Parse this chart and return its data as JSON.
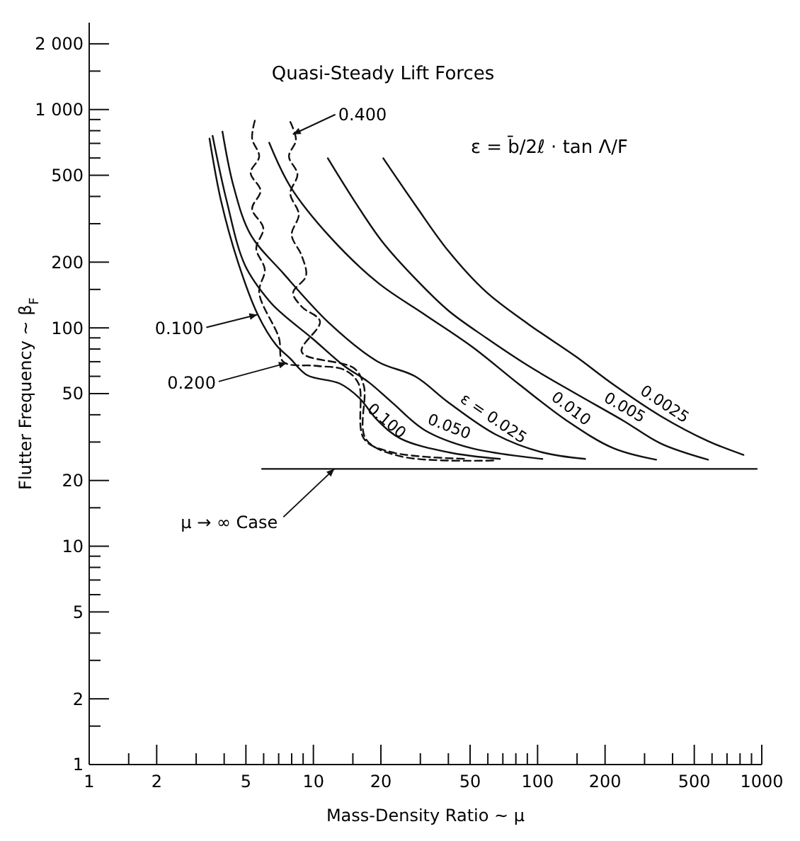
{
  "chart_data": {
    "type": "line",
    "title": "Quasi-Steady Lift Forces",
    "xlabel": "Mass-Density Ratio  ~  μ",
    "ylabel": "Flutter Frequency  ~  β$_{F}$",
    "log": "xy",
    "xlim": [
      1,
      1000
    ],
    "ylim": [
      1,
      2500
    ],
    "xticks": [
      1,
      {
        "value": 1.5,
        "label": null
      },
      2,
      {
        "value": 3,
        "label": null
      },
      {
        "value": 4,
        "label": null
      },
      5,
      {
        "value": 6,
        "label": null
      },
      {
        "value": 7,
        "label": null
      },
      {
        "value": 8,
        "label": null
      },
      {
        "value": 9,
        "label": null
      },
      10,
      {
        "value": 15,
        "label": null
      },
      20,
      {
        "value": 30,
        "label": null
      },
      {
        "value": 40,
        "label": null
      },
      50,
      {
        "value": 60,
        "label": null
      },
      {
        "value": 70,
        "label": null
      },
      {
        "value": 80,
        "label": null
      },
      {
        "value": 90,
        "label": null
      },
      100,
      {
        "value": 150,
        "label": null
      },
      200,
      {
        "value": 300,
        "label": null
      },
      {
        "value": 400,
        "label": null
      },
      500,
      {
        "value": 600,
        "label": null
      },
      {
        "value": 700,
        "label": null
      },
      {
        "value": 800,
        "label": null
      },
      {
        "value": 900,
        "label": null
      },
      1000
    ],
    "yticks": [
      1,
      {
        "value": 1.5,
        "label": null
      },
      2,
      {
        "value": 3,
        "label": null
      },
      {
        "value": 4,
        "label": null
      },
      5,
      {
        "value": 6,
        "label": null
      },
      {
        "value": 7,
        "label": null
      },
      {
        "value": 8,
        "label": null
      },
      {
        "value": 9,
        "label": null
      },
      10,
      {
        "value": 15,
        "label": null
      },
      20,
      {
        "value": 30,
        "label": null
      },
      {
        "value": 40,
        "label": null
      },
      50,
      {
        "value": 60,
        "label": null
      },
      {
        "value": 70,
        "label": null
      },
      {
        "value": 80,
        "label": null
      },
      {
        "value": 90,
        "label": null
      },
      100,
      {
        "value": 150,
        "label": null
      },
      200,
      {
        "value": 300,
        "label": null
      },
      {
        "value": 400,
        "label": null
      },
      500,
      {
        "value": 600,
        "label": null
      },
      {
        "value": 700,
        "label": null
      },
      {
        "value": 800,
        "label": null
      },
      {
        "value": 900,
        "label": null
      },
      {
        "value": 1000,
        "label": "1 000"
      },
      {
        "value": 1500,
        "label": null
      },
      {
        "value": 2000,
        "label": "2 000"
      }
    ],
    "series": [
      {
        "name": "0.0025",
        "color": "#111111",
        "line_style": "solid",
        "x": [
          20.5,
          28.5,
          40,
          59,
          91,
          148,
          218,
          355,
          576,
          829
        ],
        "values": [
          598,
          365,
          225,
          146,
          104,
          74,
          55,
          39.4,
          30.3,
          26.2
        ]
      },
      {
        "name": "0.005",
        "color": "#111111",
        "line_style": "solid",
        "x": [
          11.6,
          15.2,
          20.3,
          28.5,
          40,
          59,
          91,
          148,
          241,
          355,
          576
        ],
        "values": [
          598,
          383,
          248,
          168,
          120,
          90,
          67,
          50,
          37.6,
          29.5,
          24.9
        ]
      },
      {
        "name": "0.010",
        "color": "#111111",
        "line_style": "solid",
        "x": [
          6.35,
          7.9,
          11.9,
          19.4,
          31.4,
          51,
          83,
          135,
          218,
          338
        ],
        "values": [
          705,
          443,
          260,
          161,
          115,
          82,
          55,
          37.6,
          28.1,
          24.9
        ]
      },
      {
        "name": "ε = 0.025",
        "color": "#111111",
        "line_style": "solid",
        "x": [
          3.93,
          4.41,
          5.25,
          7.33,
          11.9,
          19.4,
          28.4,
          40.2,
          65,
          105,
          163
        ],
        "values": [
          792,
          443,
          267,
          178,
          104,
          70,
          60,
          45.4,
          32.5,
          26.9,
          25.1
        ]
      },
      {
        "name": "0.050",
        "color": "#111111",
        "line_style": "solid",
        "x": [
          3.55,
          4.1,
          4.95,
          6.35,
          7.33,
          9.82,
          13.7,
          17.6,
          22.5,
          31.4,
          50.8,
          105
        ],
        "values": [
          758,
          383,
          194,
          133,
          115,
          90,
          67,
          56.5,
          45.4,
          34,
          28.1,
          25.1
        ]
      },
      {
        "color": "#111111",
        "line_style": "solid",
        "x": [
          3.44,
          3.87,
          4.61,
          5.65,
          6.82,
          7.89,
          9.39,
          13.1,
          15.9,
          19.4,
          24.5,
          40.2,
          67.9
        ],
        "values": [
          736,
          383,
          200,
          115,
          83.5,
          72.3,
          60.7,
          55.6,
          48.1,
          37.6,
          31.1,
          26.9,
          25.1
        ]
      },
      {
        "color": "#111111",
        "line_style": "dashed",
        "x": [
          5.48,
          5.33,
          5.73,
          5.25,
          5.81,
          5.33,
          5.98,
          5.56,
          6.07,
          5.73,
          7.02,
          7.33,
          10.3,
          13.7,
          15.9,
          16.8,
          22.5,
          48.6
        ],
        "values": [
          889,
          736,
          610,
          513,
          425,
          351,
          286,
          231,
          185,
          145,
          90,
          70,
          67,
          64.3,
          55.6,
          31.1,
          26.9,
          25.1
        ]
      },
      {
        "color": "#111111",
        "line_style": "dashed",
        "x": [
          7.89,
          8.36,
          7.78,
          8.49,
          7.89,
          8.61,
          8,
          8.87,
          9.27,
          8.12,
          8.87,
          10.7,
          8.87,
          15.2,
          16.8,
          17.1,
          24.5,
          65
        ],
        "values": [
          877,
          726,
          610,
          505,
          412,
          331,
          267,
          214,
          173,
          145,
          125,
          107,
          77.6,
          65.3,
          54.1,
          31.1,
          25.8,
          24.7
        ]
      },
      {
        "color": "#111111",
        "line_style": "solid",
        "x": [
          5.9,
          950
        ],
        "values": [
          22.6,
          22.6
        ]
      }
    ],
    "annotations": [
      "ε = b̄/2ℓ · tan Λ/F",
      {
        "text": "0.400",
        "x": 8.1,
        "y": 770
      },
      {
        "text": "0.100",
        "x": 5.62,
        "y": 115
      },
      {
        "text": "0.200",
        "x": 7.6,
        "y": 69
      },
      {
        "text": "μ → ∞  Case",
        "x": 12.4,
        "y": 22.6
      },
      {
        "text": "0.100",
        "x": 21.3,
        "y": 37.6
      }
    ]
  }
}
